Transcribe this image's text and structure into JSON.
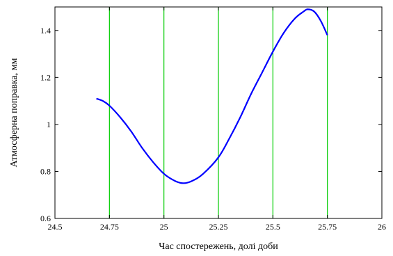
{
  "chart_data": {
    "type": "line",
    "xlabel": "Час спостережень, долі доби",
    "ylabel": "Атмосферна поправка, мм",
    "xlim": [
      24.5,
      26
    ],
    "ylim": [
      0.6,
      1.5
    ],
    "x_ticks": [
      "24.5",
      "24.75",
      "25",
      "25.25",
      "25.5",
      "25.75",
      "26"
    ],
    "y_ticks": [
      "0.6",
      "0.8",
      "1",
      "1.2",
      "1.4"
    ],
    "vertical_gridlines_at": [
      24.75,
      25.0,
      25.25,
      25.5,
      25.75
    ],
    "grid_color": "#00cc00",
    "series": [
      {
        "color": "#0000ff",
        "x": [
          24.69,
          24.72,
          24.75,
          24.8,
          24.85,
          24.9,
          24.95,
          25.0,
          25.05,
          25.09,
          25.13,
          25.18,
          25.25,
          25.3,
          25.35,
          25.4,
          25.45,
          25.5,
          25.55,
          25.6,
          25.64,
          25.66,
          25.69,
          25.72,
          25.75
        ],
        "y": [
          1.11,
          1.1,
          1.08,
          1.03,
          0.97,
          0.9,
          0.84,
          0.79,
          0.76,
          0.75,
          0.76,
          0.79,
          0.86,
          0.94,
          1.03,
          1.13,
          1.22,
          1.31,
          1.39,
          1.45,
          1.48,
          1.49,
          1.48,
          1.44,
          1.38
        ]
      }
    ]
  }
}
